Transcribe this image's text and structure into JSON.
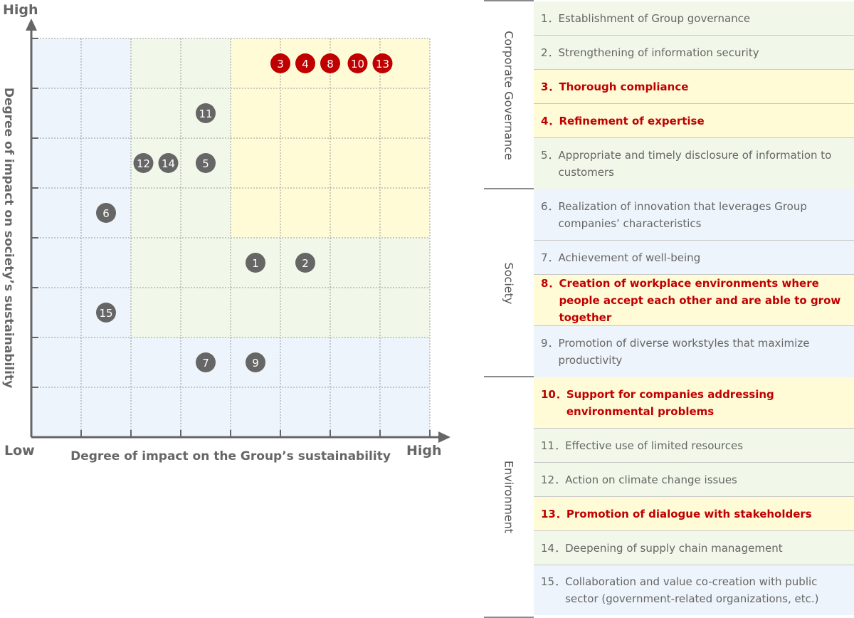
{
  "matrix": {
    "y_high_label": "High",
    "x_low_label": "Low",
    "x_high_label": "High",
    "x_title": "Degree of impact on the Group’s sustainability",
    "y_title": "Degree of impact on society’s sustainability",
    "colors": {
      "zone_low": "#eef4fb",
      "zone_mid": "#f1f8e9",
      "zone_high": "#fffbd7",
      "marker_high": "#c00000",
      "marker_other": "#666666",
      "grid": "#9a9a9a",
      "axis": "#666666"
    }
  },
  "chart_data": {
    "type": "scatter",
    "xlabel": "Degree of impact on the Group’s sustainability",
    "ylabel": "Degree of impact on society’s sustainability",
    "grid": true,
    "points": [
      {
        "label": "3",
        "x": 5.0,
        "y": 7.5,
        "highlight": true
      },
      {
        "label": "4",
        "x": 5.5,
        "y": 7.5,
        "highlight": true
      },
      {
        "label": "8",
        "x": 6.0,
        "y": 7.5,
        "highlight": true
      },
      {
        "label": "10",
        "x": 6.55,
        "y": 7.5,
        "highlight": true
      },
      {
        "label": "13",
        "x": 7.05,
        "y": 7.5,
        "highlight": true
      },
      {
        "label": "11",
        "x": 3.5,
        "y": 6.5,
        "highlight": false
      },
      {
        "label": "12",
        "x": 2.25,
        "y": 5.5,
        "highlight": false
      },
      {
        "label": "14",
        "x": 2.75,
        "y": 5.5,
        "highlight": false
      },
      {
        "label": "5",
        "x": 3.5,
        "y": 5.5,
        "highlight": false
      },
      {
        "label": "6",
        "x": 1.5,
        "y": 4.5,
        "highlight": false
      },
      {
        "label": "1",
        "x": 4.5,
        "y": 3.5,
        "highlight": false
      },
      {
        "label": "2",
        "x": 5.5,
        "y": 3.5,
        "highlight": false
      },
      {
        "label": "15",
        "x": 1.5,
        "y": 2.5,
        "highlight": false
      },
      {
        "label": "7",
        "x": 3.5,
        "y": 1.5,
        "highlight": false
      },
      {
        "label": "9",
        "x": 4.5,
        "y": 1.5,
        "highlight": false
      }
    ]
  },
  "categories": [
    {
      "title": "Corporate Governance",
      "style": "gov",
      "items": [
        {
          "num": "1．",
          "text": "Establishment of Group governance",
          "highlight": false
        },
        {
          "num": "2．",
          "text": "Strengthening of information security",
          "highlight": false
        },
        {
          "num": "3．",
          "text": "Thorough compliance",
          "highlight": true
        },
        {
          "num": "4．",
          "text": "Refinement of expertise",
          "highlight": true
        },
        {
          "num": "5．",
          "text": "Appropriate and timely disclosure of information to customers",
          "highlight": false
        }
      ]
    },
    {
      "title": "Society",
      "style": "soc",
      "items": [
        {
          "num": "6．",
          "text": "Realization of innovation that leverages Group companies’ characteristics",
          "highlight": false
        },
        {
          "num": "7．",
          "text": "Achievement of well-being",
          "highlight": false
        },
        {
          "num": "8．",
          "text": "Creation of workplace environments where people accept each other and are able to grow together",
          "highlight": true
        },
        {
          "num": "9．",
          "text": "Promotion of diverse workstyles that maximize productivity",
          "highlight": false
        }
      ]
    },
    {
      "title": "Environment",
      "style": "env",
      "items": [
        {
          "num": "10．",
          "text": "Support for companies addressing environmental problems",
          "highlight": true
        },
        {
          "num": "11．",
          "text": "Effective use of limited resources",
          "highlight": false
        },
        {
          "num": "12．",
          "text": "Action on climate change issues",
          "highlight": false
        },
        {
          "num": "13．",
          "text": "Promotion of dialogue with stakeholders",
          "highlight": true
        },
        {
          "num": "14．",
          "text": "Deepening of supply chain management",
          "highlight": false
        },
        {
          "num": "15．",
          "text": "Collaboration and value co-creation with public sector (government-related organizations, etc.)",
          "highlight": false
        }
      ]
    }
  ]
}
